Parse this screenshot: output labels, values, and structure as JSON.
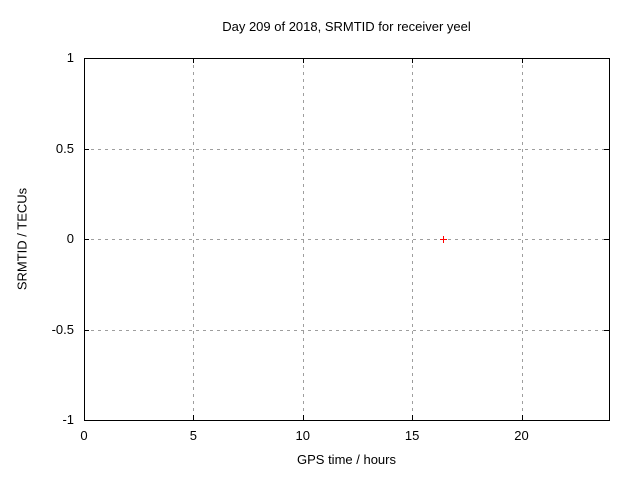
{
  "chart_data": {
    "type": "scatter",
    "title": "Day 209 of 2018, SRMTID for receiver yeel",
    "xlabel": "GPS time / hours",
    "ylabel": "SRMTID / TECUs",
    "xlim": [
      0,
      24
    ],
    "ylim": [
      -1,
      1
    ],
    "x_ticks": [
      0,
      5,
      10,
      15,
      20
    ],
    "x_tick_labels": [
      "0",
      "5",
      "10",
      "15",
      "20"
    ],
    "y_ticks": [
      -1,
      -0.5,
      0,
      0.5,
      1
    ],
    "y_tick_labels": [
      "-1",
      "-0.5",
      "0",
      "0.5",
      "1"
    ],
    "grid": true,
    "grid_style": "dashed",
    "legend": "none",
    "series": [
      {
        "name": "SRMTID",
        "marker": "plus",
        "color": "#ff0000",
        "points": [
          [
            16.4,
            0.0
          ]
        ]
      }
    ],
    "colors": {
      "background": "#ffffff",
      "border": "#000000",
      "grid": "#9e9e9e",
      "text": "#000000"
    }
  }
}
